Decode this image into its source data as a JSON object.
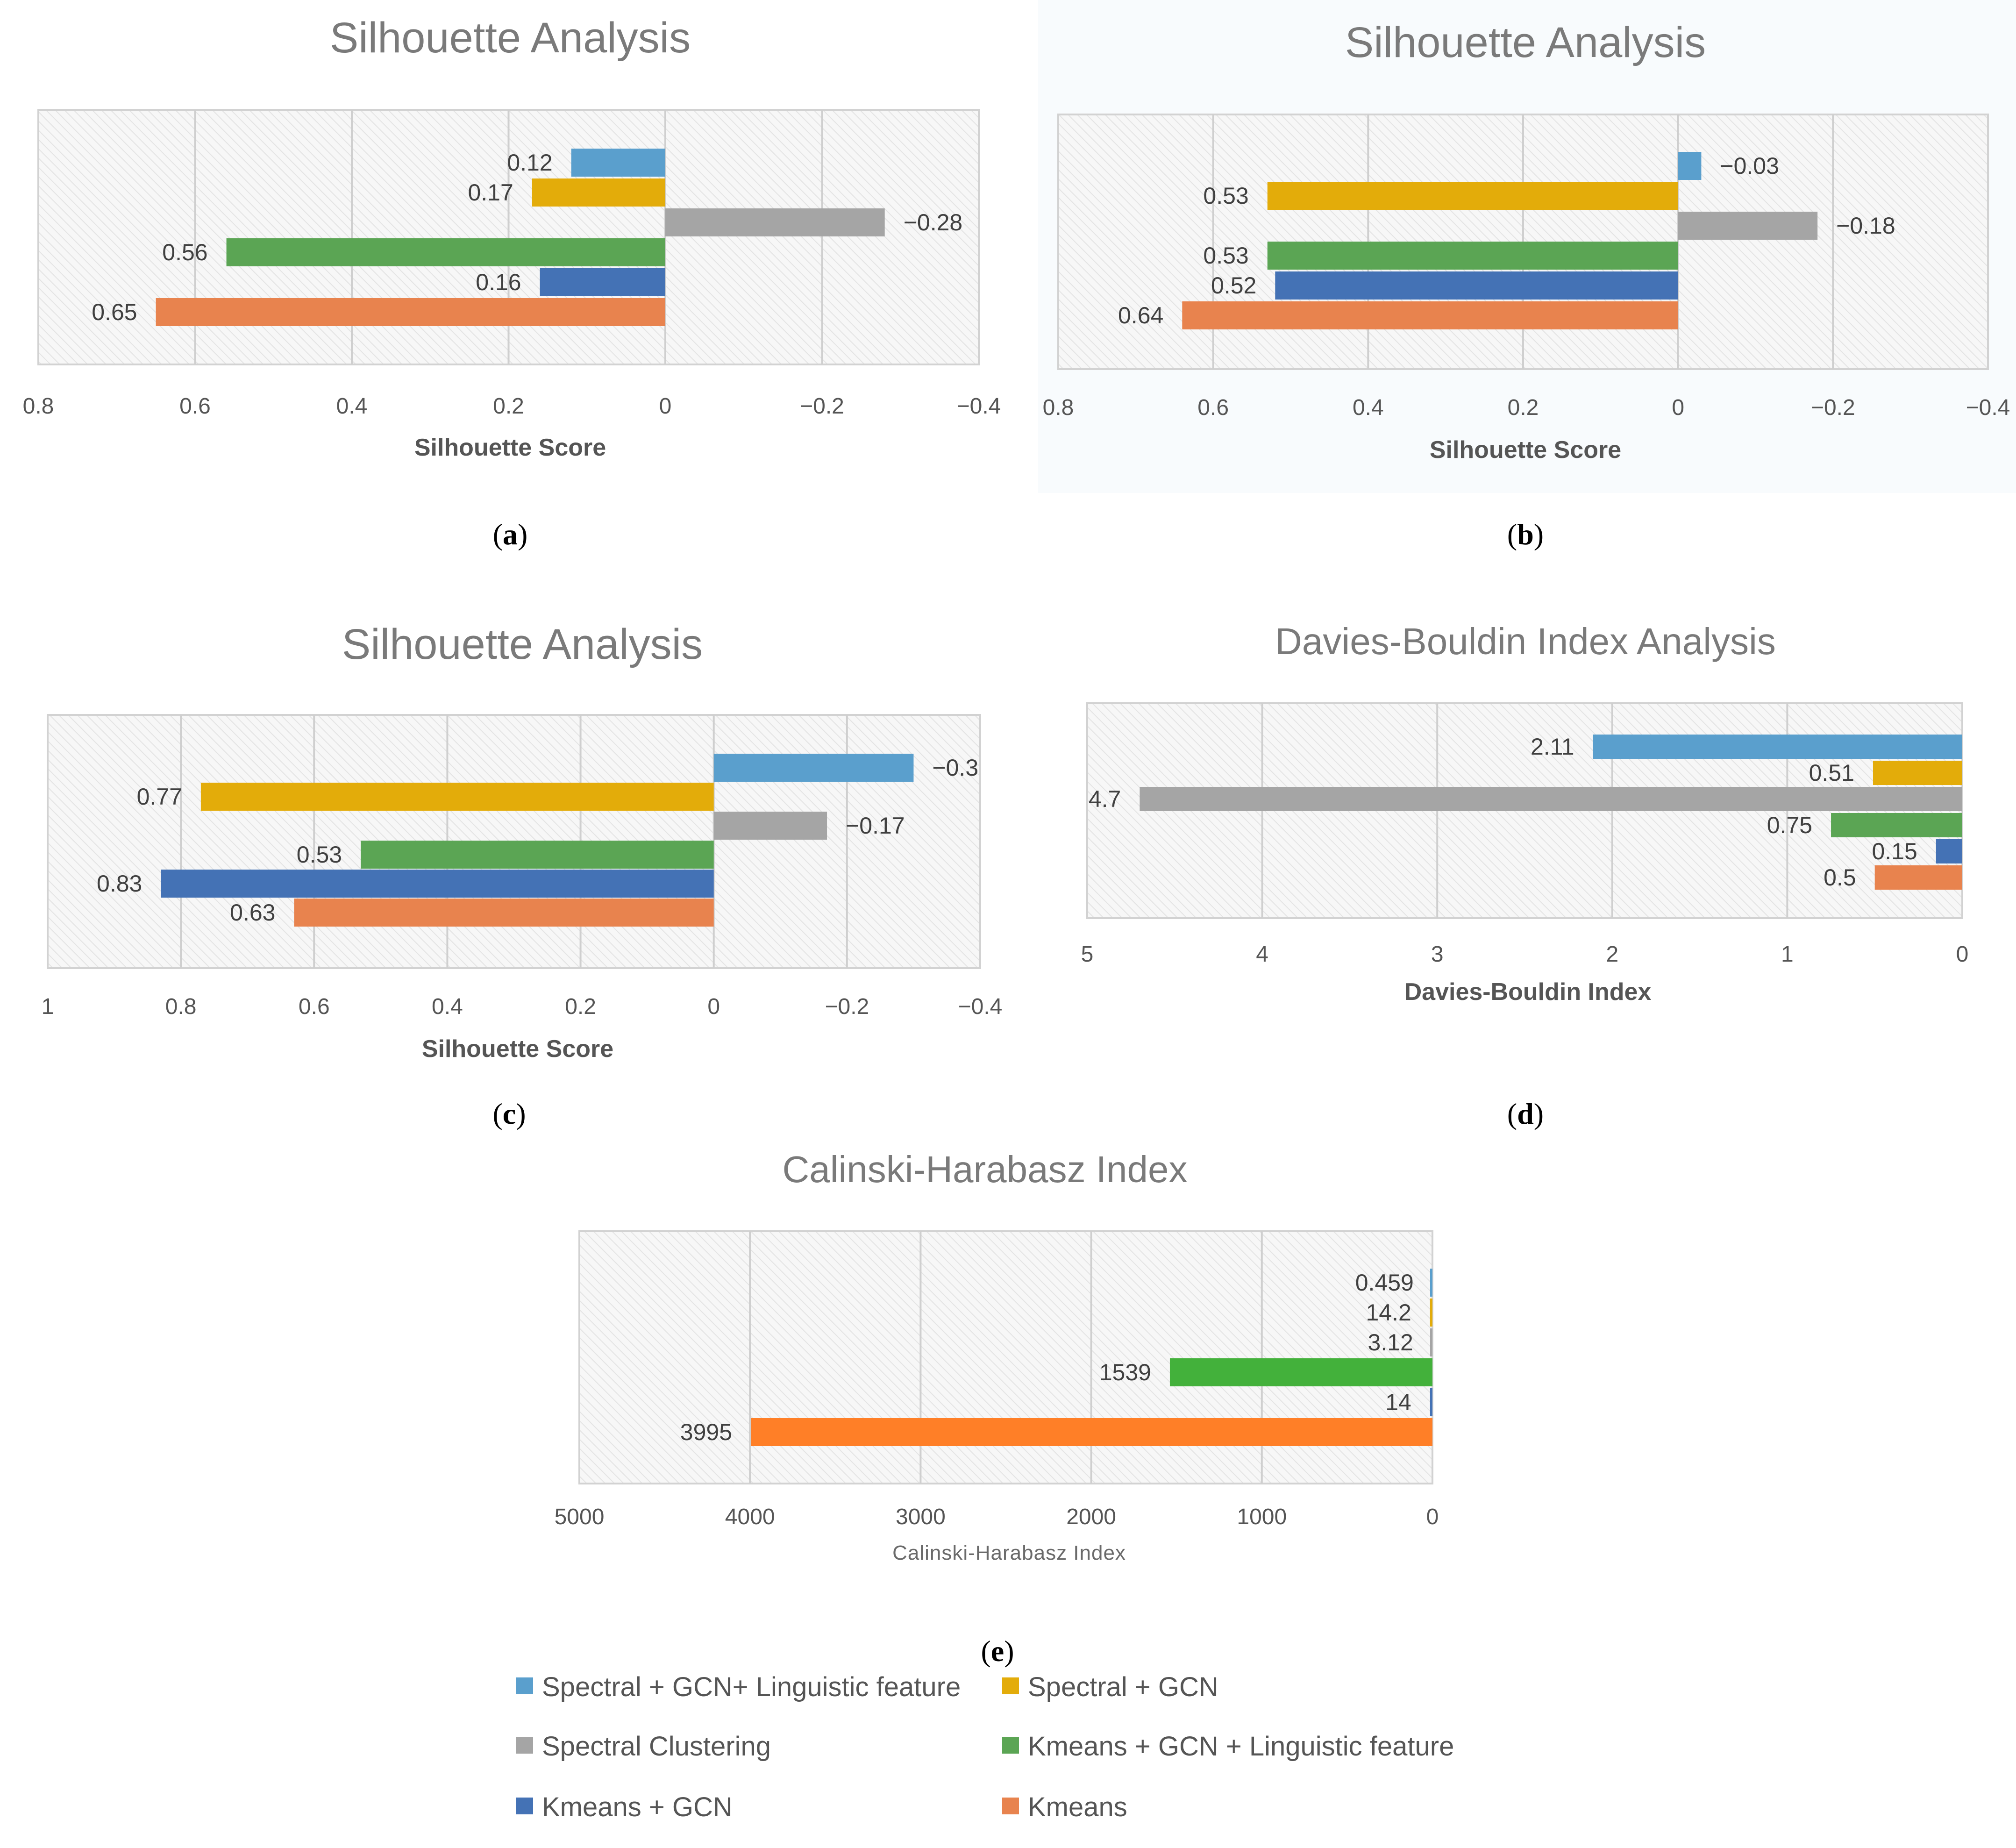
{
  "colors": {
    "spectral_gcn_ling": "#5a9fcd",
    "spectral_gcn": "#e3ac0a",
    "spectral": "#a5a5a5",
    "kmeans_gcn_ling": "#5ba554",
    "kmeans_gcn": "#4472b5",
    "kmeans": "#e8834e",
    "ch_kmeans_gcn_ling": "#43b13b",
    "ch_kmeans": "#ff7f27"
  },
  "legend": {
    "items": [
      {
        "key": "spectral_gcn_ling",
        "label": "Spectral + GCN+ Linguistic feature"
      },
      {
        "key": "spectral_gcn",
        "label": "Spectral + GCN"
      },
      {
        "key": "spectral",
        "label": "Spectral Clustering"
      },
      {
        "key": "kmeans_gcn_ling",
        "label": "Kmeans + GCN + Linguistic feature"
      },
      {
        "key": "kmeans_gcn",
        "label": "Kmeans + GCN"
      },
      {
        "key": "kmeans",
        "label": "Kmeans"
      }
    ]
  },
  "chart_data": [
    {
      "id": "a",
      "type": "bar",
      "orientation": "horizontal",
      "x_reversed": true,
      "caption": "(a)",
      "caption_letter": "a",
      "title": "Silhouette Analysis",
      "xlabel": "Silhouette Score",
      "xlim": [
        0.8,
        -0.4
      ],
      "grid": true,
      "ticks": [
        0.8,
        0.6,
        0.4,
        0.2,
        0,
        -0.2,
        -0.4
      ],
      "tick_labels": [
        "0.8",
        "0.6",
        "0.4",
        "0.2",
        "0",
        "−0.2",
        "−0.4"
      ],
      "series": [
        {
          "name": "Spectral + GCN+ Linguistic feature",
          "value": 0.12,
          "label": "0.12"
        },
        {
          "name": "Spectral + GCN",
          "value": 0.17,
          "label": "0.17"
        },
        {
          "name": "Spectral Clustering",
          "value": -0.28,
          "label": "−0.28"
        },
        {
          "name": "Kmeans + GCN + Linguistic feature",
          "value": 0.56,
          "label": "0.56"
        },
        {
          "name": "Kmeans + GCN",
          "value": 0.16,
          "label": "0.16"
        },
        {
          "name": "Kmeans",
          "value": 0.65,
          "label": "0.65"
        }
      ]
    },
    {
      "id": "b",
      "type": "bar",
      "orientation": "horizontal",
      "x_reversed": true,
      "caption": "(b)",
      "caption_letter": "b",
      "title": "Silhouette Analysis",
      "xlabel": "Silhouette Score",
      "xlim": [
        0.8,
        -0.4
      ],
      "grid": true,
      "ticks": [
        0.8,
        0.6,
        0.4,
        0.2,
        0,
        -0.2,
        -0.4
      ],
      "tick_labels": [
        "0.8",
        "0.6",
        "0.4",
        "0.2",
        "0",
        "−0.2",
        "−0.4"
      ],
      "series": [
        {
          "name": "Spectral + GCN+ Linguistic feature",
          "value": -0.03,
          "label": "−0.03"
        },
        {
          "name": "Spectral + GCN",
          "value": 0.53,
          "label": "0.53"
        },
        {
          "name": "Spectral Clustering",
          "value": -0.18,
          "label": "−0.18"
        },
        {
          "name": "Kmeans + GCN + Linguistic feature",
          "value": 0.53,
          "label": "0.53"
        },
        {
          "name": "Kmeans + GCN",
          "value": 0.52,
          "label": "0.52"
        },
        {
          "name": "Kmeans",
          "value": 0.64,
          "label": "0.64"
        }
      ]
    },
    {
      "id": "c",
      "type": "bar",
      "orientation": "horizontal",
      "x_reversed": true,
      "caption": "(c)",
      "caption_letter": "c",
      "title": "Silhouette Analysis",
      "xlabel": "Silhouette Score",
      "xlim": [
        1,
        -0.4
      ],
      "grid": true,
      "ticks": [
        1,
        0.8,
        0.6,
        0.4,
        0.2,
        0,
        -0.2,
        -0.4
      ],
      "tick_labels": [
        "1",
        "0.8",
        "0.6",
        "0.4",
        "0.2",
        "0",
        "−0.2",
        "−0.4"
      ],
      "series": [
        {
          "name": "Spectral + GCN+ Linguistic feature",
          "value": -0.3,
          "label": "−0.3"
        },
        {
          "name": "Spectral + GCN",
          "value": 0.77,
          "label": "0.77"
        },
        {
          "name": "Spectral Clustering",
          "value": -0.17,
          "label": "−0.17"
        },
        {
          "name": "Kmeans + GCN + Linguistic feature",
          "value": 0.53,
          "label": "0.53"
        },
        {
          "name": "Kmeans + GCN",
          "value": 0.83,
          "label": "0.83"
        },
        {
          "name": "Kmeans",
          "value": 0.63,
          "label": "0.63"
        }
      ]
    },
    {
      "id": "d",
      "type": "bar",
      "orientation": "horizontal",
      "x_reversed": true,
      "caption": "(d)",
      "caption_letter": "d",
      "title": "Davies-Bouldin Index Analysis",
      "xlabel": "Davies-Bouldin Index",
      "xlim": [
        5,
        0
      ],
      "grid": true,
      "ticks": [
        5,
        4,
        3,
        2,
        1,
        0
      ],
      "tick_labels": [
        "5",
        "4",
        "3",
        "2",
        "1",
        "0"
      ],
      "series": [
        {
          "name": "Spectral + GCN+ Linguistic feature",
          "value": 2.11,
          "label": "2.11"
        },
        {
          "name": "Spectral + GCN",
          "value": 0.51,
          "label": "0.51"
        },
        {
          "name": "Spectral Clustering",
          "value": 4.7,
          "label": "4.7"
        },
        {
          "name": "Kmeans + GCN + Linguistic feature",
          "value": 0.75,
          "label": "0.75"
        },
        {
          "name": "Kmeans + GCN",
          "value": 0.15,
          "label": "0.15"
        },
        {
          "name": "Kmeans",
          "value": 0.5,
          "label": "0.5"
        }
      ]
    },
    {
      "id": "e",
      "type": "bar",
      "orientation": "horizontal",
      "x_reversed": true,
      "caption": "(e)",
      "caption_letter": "e",
      "title": "Calinski-Harabasz Index",
      "xlabel": "Calinski-Harabasz Index",
      "xlim": [
        5000,
        0
      ],
      "grid": true,
      "ticks": [
        5000,
        4000,
        3000,
        2000,
        1000,
        0
      ],
      "tick_labels": [
        "5000",
        "4000",
        "3000",
        "2000",
        "1000",
        "0"
      ],
      "series": [
        {
          "name": "Spectral + GCN+ Linguistic feature",
          "value": 0.459,
          "label": "0.459"
        },
        {
          "name": "Spectral + GCN",
          "value": 14.2,
          "label": "14.2"
        },
        {
          "name": "Spectral Clustering",
          "value": 3.12,
          "label": "3.12"
        },
        {
          "name": "Kmeans + GCN + Linguistic feature",
          "value": 1539,
          "label": "1539"
        },
        {
          "name": "Kmeans + GCN",
          "value": 14,
          "label": "14"
        },
        {
          "name": "Kmeans",
          "value": 3995,
          "label": "3995"
        }
      ]
    }
  ]
}
